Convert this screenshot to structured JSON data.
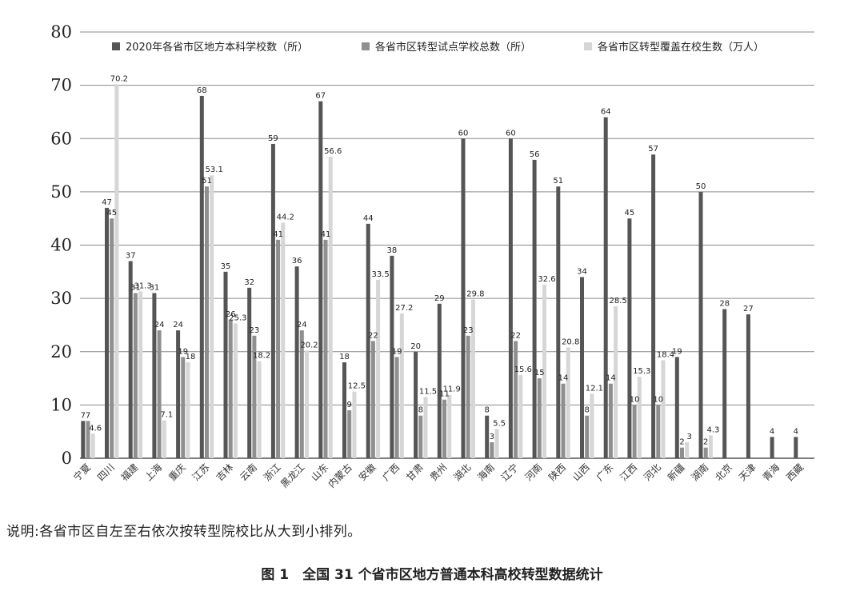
{
  "chart_data": {
    "type": "bar",
    "categories": [
      "宁夏",
      "四川",
      "福建",
      "上海",
      "重庆",
      "江苏",
      "吉林",
      "云南",
      "浙江",
      "黑龙江",
      "山东",
      "内蒙古",
      "安徽",
      "广西",
      "甘肃",
      "贵州",
      "湖北",
      "海南",
      "辽宁",
      "河南",
      "陕西",
      "山西",
      "广东",
      "江西",
      "河北",
      "新疆",
      "湖南",
      "北京",
      "天津",
      "青海",
      "西藏"
    ],
    "series": [
      {
        "name": "2020年各省市区地方本科学校数（所）",
        "color": "#555555",
        "values": [
          7,
          47,
          37,
          31,
          24,
          68,
          35,
          32,
          59,
          36,
          67,
          18,
          44,
          38,
          20,
          29,
          60,
          8,
          60,
          56,
          51,
          34,
          64,
          45,
          57,
          19,
          50,
          28,
          27,
          4,
          4
        ]
      },
      {
        "name": "各省市区转型试点学校总数（所）",
        "color": "#8f8f8f",
        "values": [
          7,
          45,
          31,
          24,
          19,
          51,
          26,
          23,
          41,
          24,
          41,
          9,
          22,
          19,
          8,
          11,
          23,
          3,
          22,
          15,
          14,
          8,
          14,
          10,
          10,
          2,
          2,
          null,
          null,
          null,
          null
        ]
      },
      {
        "name": "各省市区转型覆盖在校生数（万人）",
        "color": "#d6d6d6",
        "values": [
          4.6,
          70.2,
          31.3,
          7.1,
          18,
          53.1,
          25.3,
          18.2,
          44.2,
          20.2,
          56.6,
          12.5,
          33.5,
          27.2,
          11.5,
          11.9,
          29.8,
          5.5,
          15.6,
          32.6,
          20.8,
          12.1,
          28.5,
          15.3,
          18.4,
          3,
          4.3,
          null,
          null,
          null,
          null
        ]
      }
    ],
    "title": "",
    "xlabel": "",
    "ylabel": "",
    "ylim": [
      0,
      80
    ],
    "yticks": [
      0,
      10,
      20,
      30,
      40,
      50,
      60,
      70,
      80
    ],
    "grid": true,
    "legend_position": "top"
  },
  "note": "说明:各省市区自左至右依次按转型院校比从大到小排列。",
  "figure_caption": "图 1　全国 31 个省市区地方普通本科高校转型数据统计"
}
